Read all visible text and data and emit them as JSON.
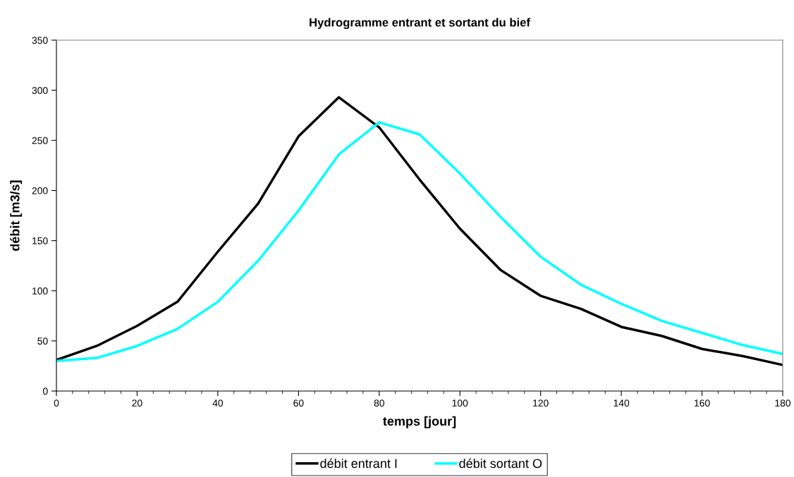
{
  "chart_data": {
    "type": "line",
    "title": "Hydrogramme entrant et sortant du bief",
    "xlabel": "temps [jour]",
    "ylabel": "débit [m3/s]",
    "x": [
      0,
      10,
      20,
      30,
      40,
      50,
      60,
      70,
      80,
      90,
      100,
      110,
      120,
      130,
      140,
      150,
      160,
      170,
      180
    ],
    "series": [
      {
        "name": "débit entrant I",
        "color": "#000000",
        "values": [
          31,
          45,
          65,
          89,
          139,
          187,
          254,
          293,
          263,
          211,
          162,
          121,
          95,
          82,
          64,
          55,
          42,
          35,
          26
        ]
      },
      {
        "name": "débit sortant O",
        "color": "#00ffff",
        "values": [
          30,
          33,
          45,
          62,
          89,
          130,
          180,
          236,
          268,
          256,
          217,
          174,
          134,
          106,
          87,
          70,
          58,
          46,
          37
        ]
      }
    ],
    "xlim": [
      0,
      180
    ],
    "ylim": [
      0,
      350
    ],
    "xticks": [
      0,
      {
        "value": 4,
        "label": null
      },
      {
        "value": 8,
        "label": null
      },
      {
        "value": 12,
        "label": null
      },
      {
        "value": 16,
        "label": null
      },
      20,
      {
        "value": 24,
        "label": null
      },
      {
        "value": 28,
        "label": null
      },
      {
        "value": 32,
        "label": null
      },
      {
        "value": 36,
        "label": null
      },
      40,
      {
        "value": 44,
        "label": null
      },
      {
        "value": 48,
        "label": null
      },
      {
        "value": 52,
        "label": null
      },
      {
        "value": 56,
        "label": null
      },
      60,
      {
        "value": 64,
        "label": null
      },
      {
        "value": 68,
        "label": null
      },
      {
        "value": 72,
        "label": null
      },
      {
        "value": 76,
        "label": null
      },
      80,
      {
        "value": 84,
        "label": null
      },
      {
        "value": 88,
        "label": null
      },
      {
        "value": 92,
        "label": null
      },
      {
        "value": 96,
        "label": null
      },
      100,
      {
        "value": 104,
        "label": null
      },
      {
        "value": 108,
        "label": null
      },
      {
        "value": 112,
        "label": null
      },
      {
        "value": 116,
        "label": null
      },
      120,
      {
        "value": 124,
        "label": null
      },
      {
        "value": 128,
        "label": null
      },
      {
        "value": 132,
        "label": null
      },
      {
        "value": 136,
        "label": null
      },
      140,
      {
        "value": 144,
        "label": null
      },
      {
        "value": 148,
        "label": null
      },
      {
        "value": 152,
        "label": null
      },
      {
        "value": 156,
        "label": null
      },
      160,
      {
        "value": 164,
        "label": null
      },
      {
        "value": 168,
        "label": null
      },
      {
        "value": 172,
        "label": null
      },
      {
        "value": 176,
        "label": null
      },
      180
    ],
    "yticks": [
      0,
      50,
      100,
      150,
      200,
      250,
      300,
      350
    ],
    "grid": false,
    "legend": "bottom",
    "marker": "none",
    "line_style": "solid"
  }
}
